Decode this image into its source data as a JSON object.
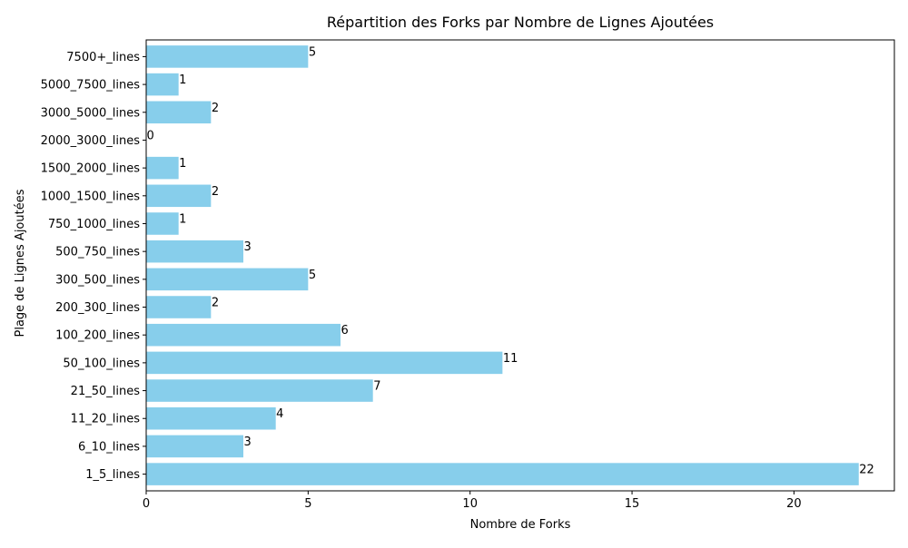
{
  "chart_data": {
    "type": "bar",
    "orientation": "horizontal",
    "title": "Répartition des Forks par Nombre de Lignes Ajoutées",
    "xlabel": "Nombre de Forks",
    "ylabel": "Plage de Lignes Ajoutées",
    "categories": [
      "1_5_lines",
      "6_10_lines",
      "11_20_lines",
      "21_50_lines",
      "50_100_lines",
      "100_200_lines",
      "200_300_lines",
      "300_500_lines",
      "500_750_lines",
      "750_1000_lines",
      "1000_1500_lines",
      "1500_2000_lines",
      "2000_3000_lines",
      "3000_5000_lines",
      "5000_7500_lines",
      "7500+_lines"
    ],
    "values": [
      22,
      3,
      4,
      7,
      11,
      6,
      2,
      5,
      3,
      1,
      2,
      1,
      0,
      2,
      1,
      5
    ],
    "xlim": [
      0,
      23.1
    ],
    "xticks": [
      0,
      5,
      10,
      15,
      20
    ],
    "bar_color": "#87CEEB",
    "grid": false,
    "legend": false
  }
}
